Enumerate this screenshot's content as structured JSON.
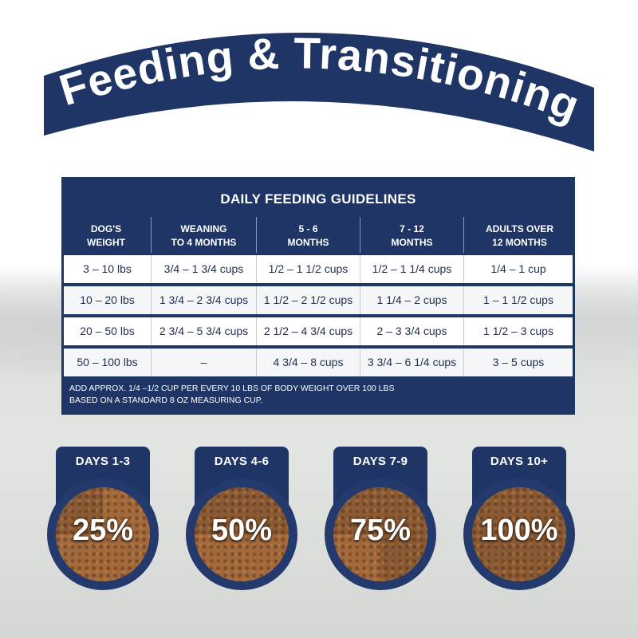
{
  "banner": {
    "title": "Feeding & Transitioning"
  },
  "table": {
    "title": "DAILY FEEDING GUIDELINES",
    "headers": [
      [
        "DOG'S",
        "WEIGHT"
      ],
      [
        "WEANING",
        "TO 4 MONTHS"
      ],
      [
        "5 - 6",
        "MONTHS"
      ],
      [
        "7 - 12",
        "MONTHS"
      ],
      [
        "ADULTS OVER",
        "12 MONTHS"
      ]
    ],
    "rows": [
      [
        "3 – 10 lbs",
        "3/4 – 1 3/4 cups",
        "1/2 – 1 1/2 cups",
        "1/2 – 1 1/4 cups",
        "1/4 – 1 cup"
      ],
      [
        "10 – 20 lbs",
        "1 3/4 – 2 3/4 cups",
        "1 1/2 – 2 1/2 cups",
        "1 1/4 – 2 cups",
        "1 – 1 1/2 cups"
      ],
      [
        "20 – 50 lbs",
        "2 3/4 – 5 3/4 cups",
        "2 1/2 – 4 3/4 cups",
        "2 – 3 3/4 cups",
        "1 1/2 – 3 cups"
      ],
      [
        "50 – 100 lbs",
        "–",
        "4 3/4 – 8 cups",
        "3 3/4 – 6 1/4 cups",
        "3 – 5 cups"
      ]
    ],
    "note_line1": "ADD APPROX. 1/4 –1/2 CUP PER EVERY 10 LBS OF BODY WEIGHT OVER 100 LBS",
    "note_line2": "BASED ON A STANDARD 8 OZ MEASURING CUP."
  },
  "transition": [
    {
      "days": "DAYS 1-3",
      "percent": "25%",
      "fraction": 0.25
    },
    {
      "days": "DAYS 4-6",
      "percent": "50%",
      "fraction": 0.5
    },
    {
      "days": "DAYS 7-9",
      "percent": "75%",
      "fraction": 0.75
    },
    {
      "days": "DAYS 10+",
      "percent": "100%",
      "fraction": 1.0
    }
  ],
  "colors": {
    "navy": "#1e3566",
    "kibble": "#8a5a34",
    "old_food": "#a2693c"
  }
}
